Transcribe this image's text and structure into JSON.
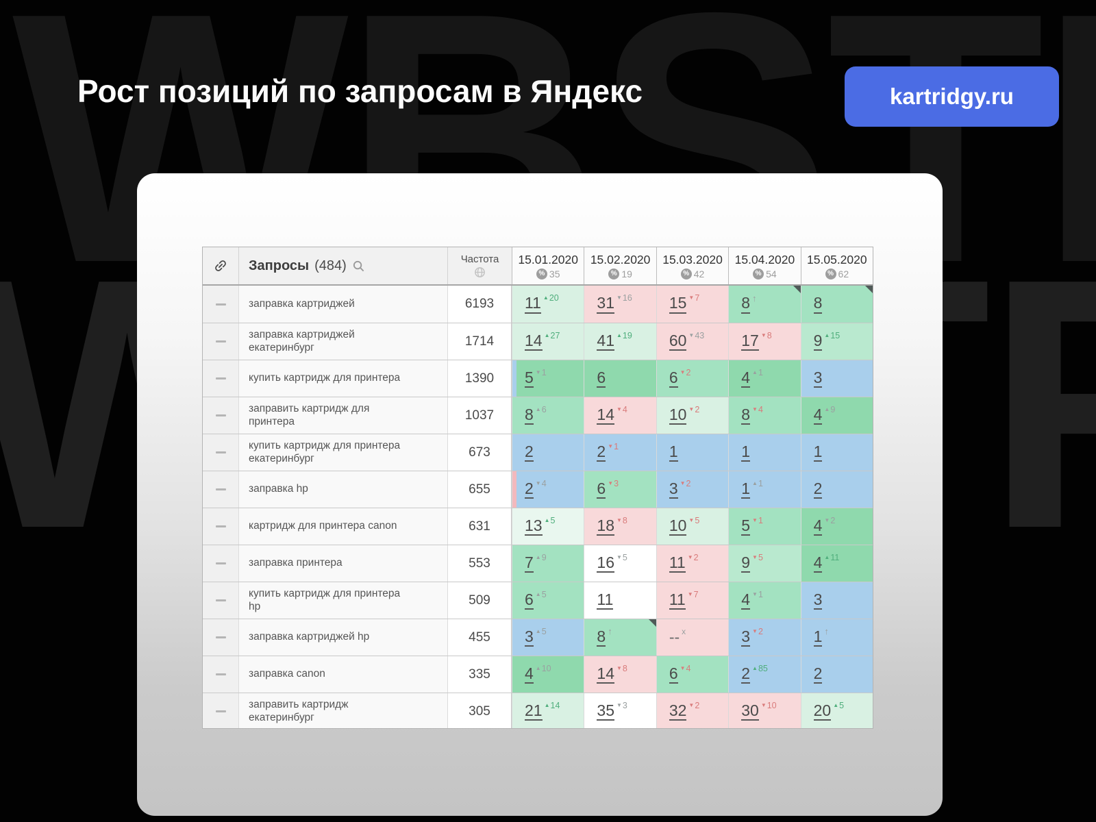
{
  "page": {
    "title": "Рост позиций по запросам в Яндекс",
    "badge": "kartridgy.ru",
    "watermark": "WBSTR"
  },
  "colors": {
    "badge_bg": "#4b6ce4",
    "cell_backgrounds": {
      "g1": "#e9f7ef",
      "g2": "#d9f1e3",
      "g3": "#b9e9cf",
      "g4": "#a3e2c1",
      "g5": "#8fd9ad",
      "blue": "#a9cfec",
      "pink": "#f8d9da",
      "white": "#ffffff",
      "stripPink": "#f2b9bd"
    },
    "delta_tones": {
      "green": "#4fae7c",
      "red": "#d97b7b",
      "gray": "#9aa0a0"
    }
  },
  "table": {
    "queries_label": "Запросы",
    "queries_count": "(484)",
    "frequency_label": "Частота",
    "columns": [
      {
        "date": "15.01.2020",
        "percent": "35"
      },
      {
        "date": "15.02.2020",
        "percent": "19"
      },
      {
        "date": "15.03.2020",
        "percent": "42"
      },
      {
        "date": "15.04.2020",
        "percent": "54"
      },
      {
        "date": "15.05.2020",
        "percent": "62"
      }
    ],
    "rows": [
      {
        "query": "заправка картриджей",
        "frequency": "6193",
        "cells": [
          {
            "v": "11",
            "d": "20",
            "dir": "up",
            "tone": "green",
            "bg": "g2"
          },
          {
            "v": "31",
            "d": "16",
            "dir": "down",
            "tone": "gray",
            "bg": "pink"
          },
          {
            "v": "15",
            "d": "7",
            "dir": "down",
            "tone": "red",
            "bg": "pink"
          },
          {
            "v": "8",
            "dir": "uponly",
            "tone": "gray",
            "bg": "g4",
            "corner": true
          },
          {
            "v": "8",
            "bg": "g4",
            "corner": true
          }
        ]
      },
      {
        "query": "заправка картриджей екатеринбург",
        "frequency": "1714",
        "cells": [
          {
            "v": "14",
            "d": "27",
            "dir": "up",
            "tone": "green",
            "bg": "g2"
          },
          {
            "v": "41",
            "d": "19",
            "dir": "up",
            "tone": "green",
            "bg": "g2"
          },
          {
            "v": "60",
            "d": "43",
            "dir": "down",
            "tone": "gray",
            "bg": "pink"
          },
          {
            "v": "17",
            "d": "8",
            "dir": "down",
            "tone": "red",
            "bg": "pink"
          },
          {
            "v": "9",
            "d": "15",
            "dir": "up",
            "tone": "green",
            "bg": "g3"
          }
        ]
      },
      {
        "query": "купить картридж для принтера",
        "frequency": "1390",
        "cells": [
          {
            "v": "5",
            "d": "1",
            "dir": "down",
            "tone": "gray",
            "bg": "g5",
            "strip": "blue"
          },
          {
            "v": "6",
            "bg": "g5"
          },
          {
            "v": "6",
            "d": "2",
            "dir": "down",
            "tone": "red",
            "bg": "g4"
          },
          {
            "v": "4",
            "d": "1",
            "dir": "up",
            "tone": "gray",
            "bg": "g5"
          },
          {
            "v": "3",
            "bg": "blue"
          }
        ]
      },
      {
        "query": "заправить картридж для принтера",
        "frequency": "1037",
        "cells": [
          {
            "v": "8",
            "d": "6",
            "dir": "up",
            "tone": "gray",
            "bg": "g4"
          },
          {
            "v": "14",
            "d": "4",
            "dir": "down",
            "tone": "red",
            "bg": "pink"
          },
          {
            "v": "10",
            "d": "2",
            "dir": "down",
            "tone": "red",
            "bg": "g2"
          },
          {
            "v": "8",
            "d": "4",
            "dir": "down",
            "tone": "red",
            "bg": "g4"
          },
          {
            "v": "4",
            "d": "9",
            "dir": "up",
            "tone": "gray",
            "bg": "g5"
          }
        ]
      },
      {
        "query": "купить картридж для принтера екатеринбург",
        "frequency": "673",
        "cells": [
          {
            "v": "2",
            "bg": "blue"
          },
          {
            "v": "2",
            "d": "1",
            "dir": "down",
            "tone": "red",
            "bg": "blue"
          },
          {
            "v": "1",
            "bg": "blue"
          },
          {
            "v": "1",
            "bg": "blue"
          },
          {
            "v": "1",
            "bg": "blue"
          }
        ]
      },
      {
        "query": "заправка hp",
        "frequency": "655",
        "cells": [
          {
            "v": "2",
            "d": "4",
            "dir": "down",
            "tone": "gray",
            "bg": "blue",
            "strip": "stripPink"
          },
          {
            "v": "6",
            "d": "3",
            "dir": "down",
            "tone": "red",
            "bg": "g4"
          },
          {
            "v": "3",
            "d": "2",
            "dir": "down",
            "tone": "red",
            "bg": "blue"
          },
          {
            "v": "1",
            "d": "1",
            "dir": "up",
            "tone": "gray",
            "bg": "blue"
          },
          {
            "v": "2",
            "bg": "blue"
          }
        ]
      },
      {
        "query": "картридж для принтера canon",
        "frequency": "631",
        "cells": [
          {
            "v": "13",
            "d": "5",
            "dir": "up",
            "tone": "green",
            "bg": "g1"
          },
          {
            "v": "18",
            "d": "8",
            "dir": "down",
            "tone": "red",
            "bg": "pink"
          },
          {
            "v": "10",
            "d": "5",
            "dir": "down",
            "tone": "red",
            "bg": "g2"
          },
          {
            "v": "5",
            "d": "1",
            "dir": "down",
            "tone": "red",
            "bg": "g4"
          },
          {
            "v": "4",
            "d": "2",
            "dir": "down",
            "tone": "gray",
            "bg": "g5"
          }
        ]
      },
      {
        "query": "заправка принтера",
        "frequency": "553",
        "cells": [
          {
            "v": "7",
            "d": "9",
            "dir": "up",
            "tone": "gray",
            "bg": "g4"
          },
          {
            "v": "16",
            "d": "5",
            "dir": "down",
            "tone": "gray",
            "bg": "white"
          },
          {
            "v": "11",
            "d": "2",
            "dir": "down",
            "tone": "red",
            "bg": "pink"
          },
          {
            "v": "9",
            "d": "5",
            "dir": "down",
            "tone": "red",
            "bg": "g3"
          },
          {
            "v": "4",
            "d": "11",
            "dir": "up",
            "tone": "green",
            "bg": "g5"
          }
        ]
      },
      {
        "query": "купить картридж для принтера hp",
        "frequency": "509",
        "cells": [
          {
            "v": "6",
            "d": "5",
            "dir": "up",
            "tone": "gray",
            "bg": "g4"
          },
          {
            "v": "11",
            "bg": "white"
          },
          {
            "v": "11",
            "d": "7",
            "dir": "down",
            "tone": "red",
            "bg": "pink"
          },
          {
            "v": "4",
            "d": "1",
            "dir": "down",
            "tone": "gray",
            "bg": "g4"
          },
          {
            "v": "3",
            "bg": "blue"
          }
        ]
      },
      {
        "query": "заправка картриджей hp",
        "frequency": "455",
        "cells": [
          {
            "v": "3",
            "d": "5",
            "dir": "up",
            "tone": "gray",
            "bg": "blue"
          },
          {
            "v": "8",
            "dir": "uponly",
            "tone": "gray",
            "bg": "g4",
            "corner": true
          },
          {
            "v": "--",
            "dir": "x",
            "tone": "gray",
            "bg": "pink"
          },
          {
            "v": "3",
            "d": "2",
            "dir": "down",
            "tone": "red",
            "bg": "blue"
          },
          {
            "v": "1",
            "dir": "uponly",
            "tone": "gray",
            "bg": "blue"
          }
        ]
      },
      {
        "query": "заправка canon",
        "frequency": "335",
        "cells": [
          {
            "v": "4",
            "d": "10",
            "dir": "up",
            "tone": "gray",
            "bg": "g5"
          },
          {
            "v": "14",
            "d": "8",
            "dir": "down",
            "tone": "red",
            "bg": "pink"
          },
          {
            "v": "6",
            "d": "4",
            "dir": "down",
            "tone": "red",
            "bg": "g4"
          },
          {
            "v": "2",
            "d": "85",
            "dir": "up",
            "tone": "green",
            "bg": "blue"
          },
          {
            "v": "2",
            "bg": "blue"
          }
        ]
      },
      {
        "query": "заправить картридж екатеринбург",
        "frequency": "305",
        "cells": [
          {
            "v": "21",
            "d": "14",
            "dir": "up",
            "tone": "green",
            "bg": "g2"
          },
          {
            "v": "35",
            "d": "3",
            "dir": "down",
            "tone": "gray",
            "bg": "white"
          },
          {
            "v": "32",
            "d": "2",
            "dir": "down",
            "tone": "red",
            "bg": "pink"
          },
          {
            "v": "30",
            "d": "10",
            "dir": "down",
            "tone": "red",
            "bg": "pink"
          },
          {
            "v": "20",
            "d": "5",
            "dir": "up",
            "tone": "green",
            "bg": "g2"
          }
        ]
      }
    ]
  }
}
